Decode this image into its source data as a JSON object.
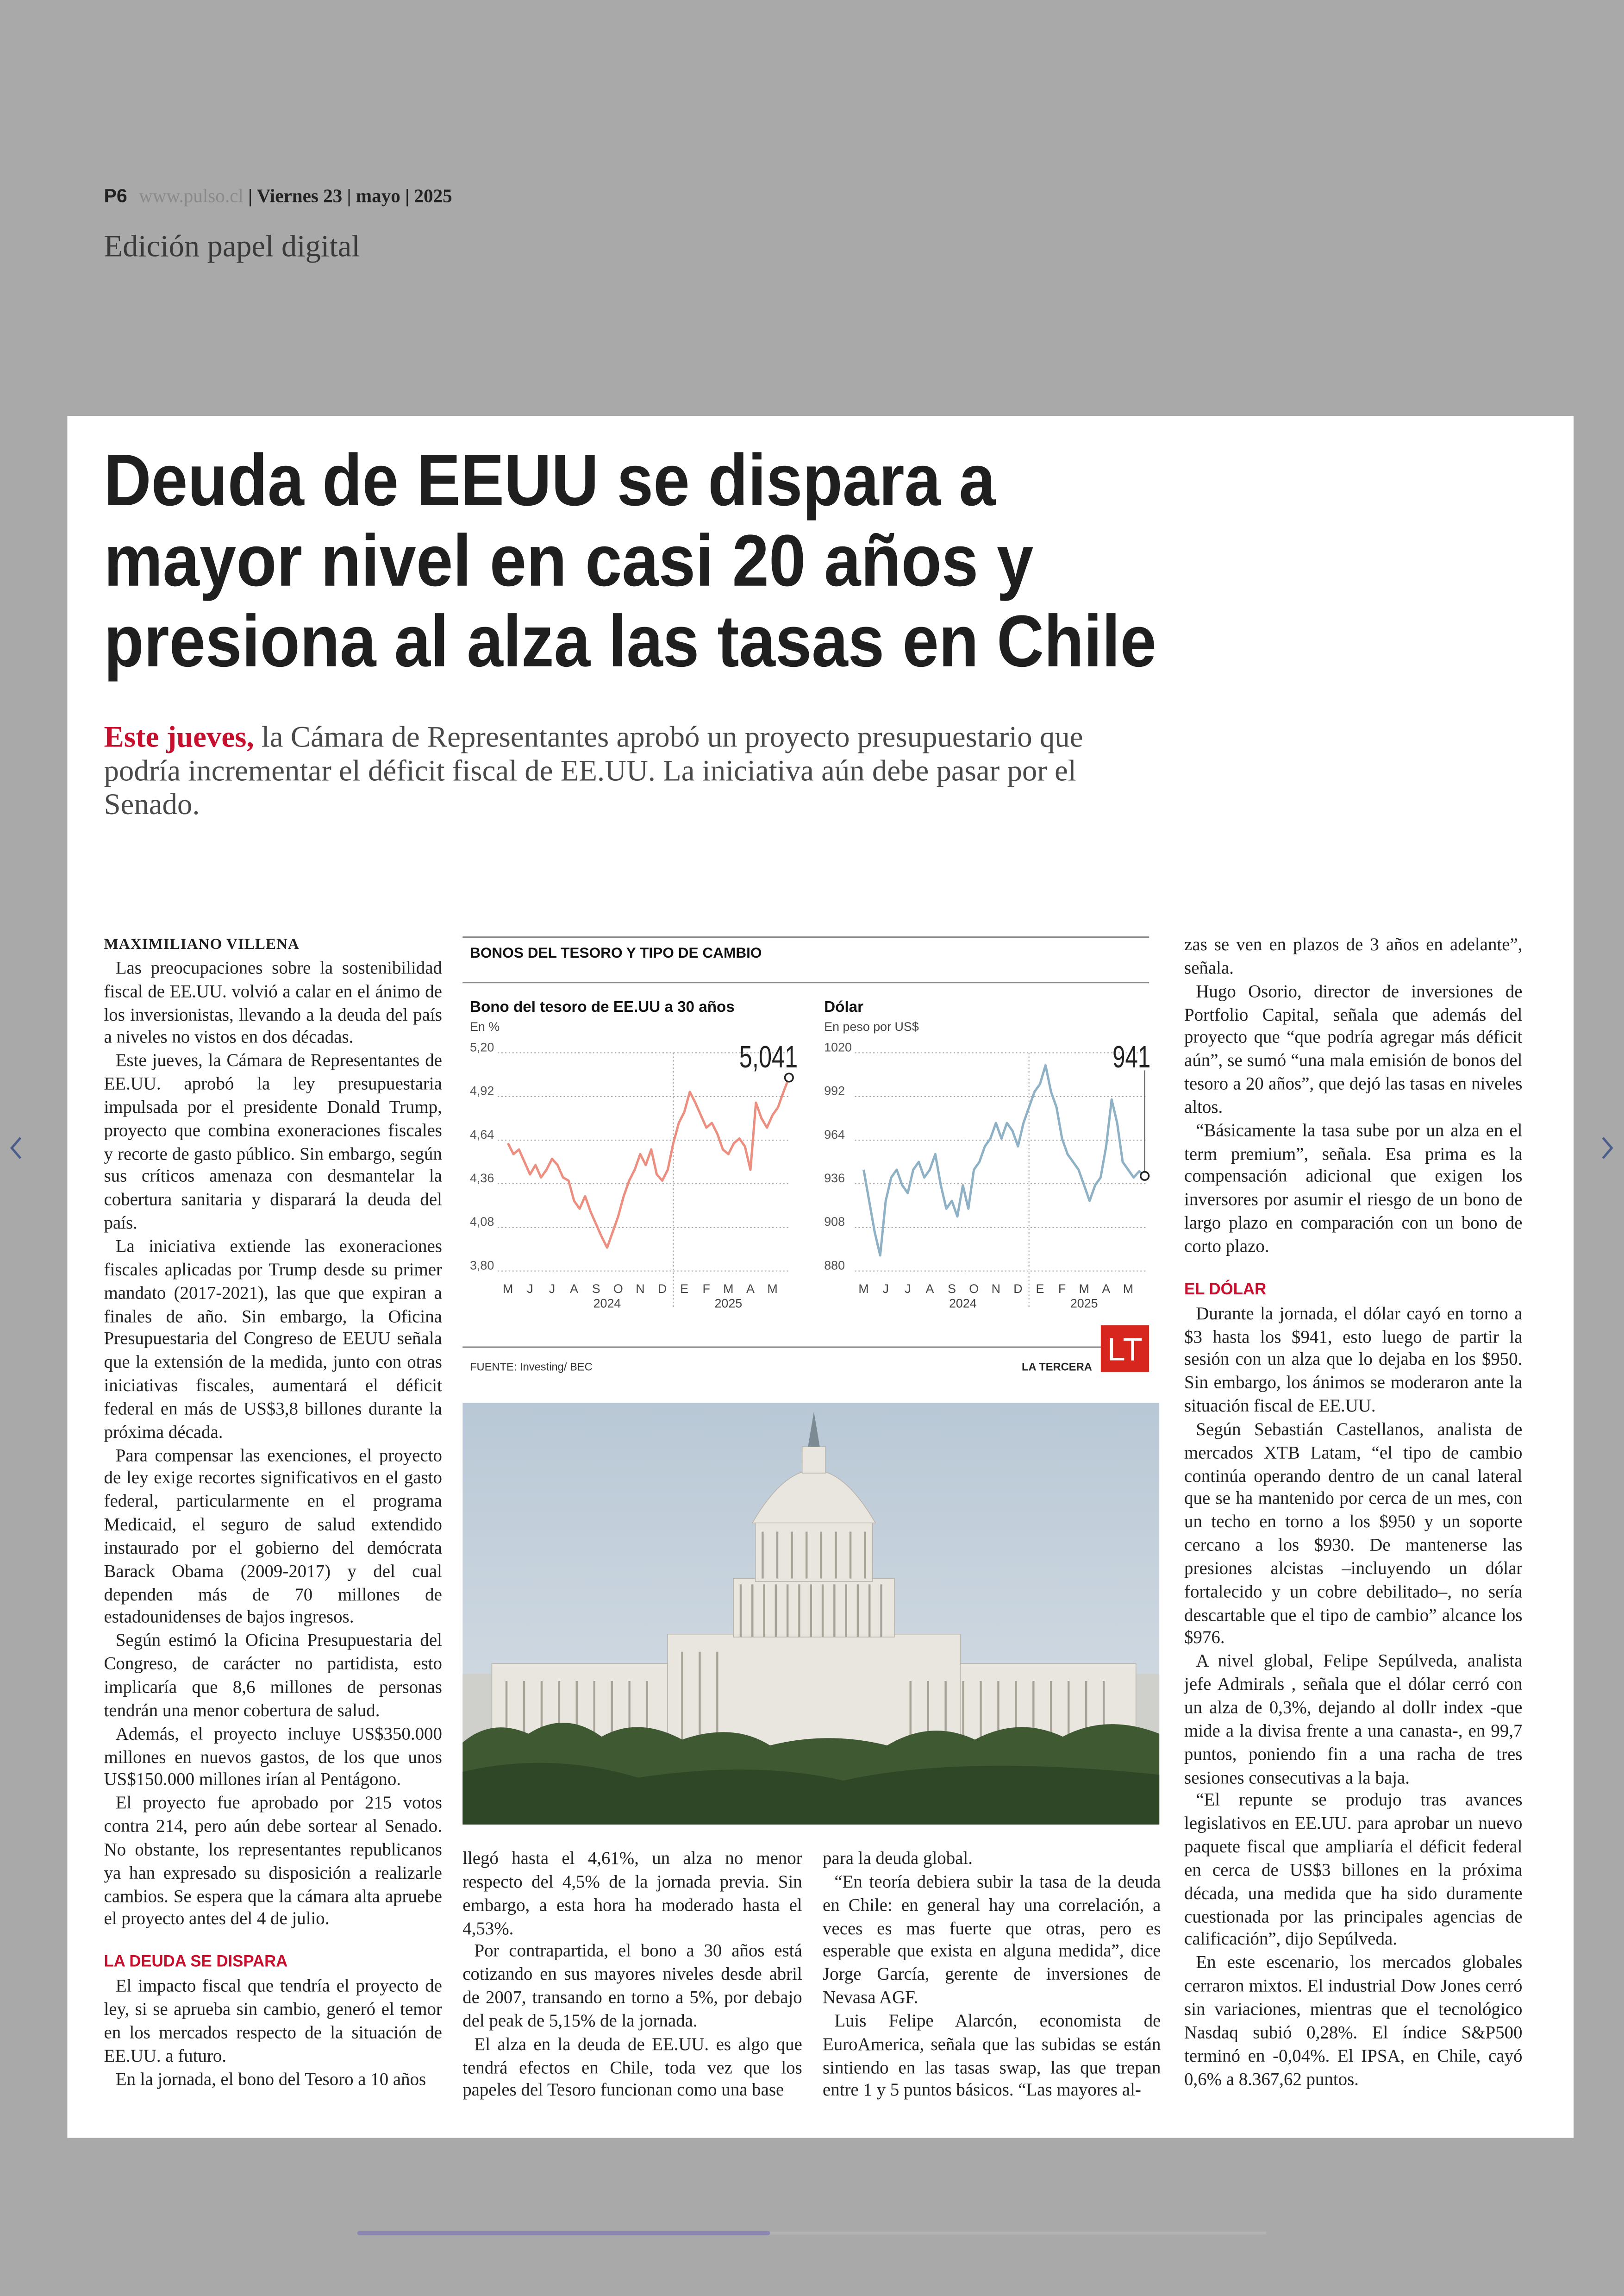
{
  "header": {
    "page": "P6",
    "url": "www.pulso.cl",
    "day": "Viernes 23",
    "month": "mayo",
    "year": "2025",
    "edition": "Edición papel digital"
  },
  "article": {
    "title": [
      "Deuda de EEUU se dispara a",
      "mayor nivel en casi 20 años y",
      "presiona al alza las tasas en Chile"
    ],
    "lead_highlight": "Este jueves,",
    "lead": "la Cámara de Representantes aprobó un proyecto presupuestario que podría incrementar el déficit fiscal de EE.UU. La iniciativa aún debe pasar por el Senado.",
    "columns": [
      {
        "byline": "MAXIMILIANO VILLENA",
        "paragraphs": [
          "Las preocupaciones sobre la sostenibilidad fiscal de EE.UU. volvió a calar en el ánimo de los inversionistas, llevando a la deuda del país a niveles no vistos en dos décadas.",
          "Este jueves, la Cámara de Representantes de EE.UU. aprobó la ley presupuestaria impulsada por el presidente Donald Trump, proyecto que combina exoneraciones fiscales y recorte de gasto público. Sin embargo, según sus críticos amenaza con desmantelar la cobertura sanitaria y disparará la deuda del país.",
          "La iniciativa extiende las exoneraciones fiscales aplicadas por Trump desde su primer mandato (2017-2021), las que que expiran a finales de año. Sin embargo, la Oficina Presupuestaria del Congreso de EEUU señala que la extensión de la medida, junto con otras iniciativas fiscales, aumentará el déficit federal en más de US$3,8 billones durante la próxima década.",
          "Para compensar las exenciones, el proyecto de ley exige recortes significativos en el gasto federal, particularmente en el programa Medicaid, el seguro de salud extendido instaurado por el gobierno del demócrata Barack Obama (2009-2017) y del cual dependen más de 70 millones de estadounidenses de bajos ingresos.",
          "Según estimó la Oficina Presupuestaria del Congreso, de carácter no partidista, esto implicaría que 8,6 millones de personas tendrán una menor cobertura de salud.",
          "Además, el proyecto incluye US$350.000 millones en nuevos gastos, de los que unos US$150.000 millones irían al Pentágono.",
          "El proyecto fue aprobado por 215 votos contra 214, pero aún debe sortear al Senado. No obstante, los representantes republicanos ya han expresado su disposición a realizarle cambios. Se espera que la cámara alta apruebe el proyecto antes del 4 de julio."
        ],
        "subhead": "LA DEUDA SE DISPARA",
        "paragraphs_2": [
          "El impacto fiscal que tendría el proyecto de ley, si se aprueba sin cambio, generó el temor en los mercados respecto de la situación de EE.UU. a futuro.",
          "En la jornada, el bono del Tesoro a 10 años"
        ]
      },
      {
        "paragraphs": [
          "llegó hasta el 4,61%, un alza no menor respecto del 4,5% de la jornada previa. Sin embargo, a esta hora ha moderado hasta el 4,53%.",
          "Por contrapartida, el bono a 30 años está cotizando en sus mayores niveles desde abril de 2007, transando en torno a 5%, por debajo del peak de 5,15% de la jornada.",
          "El alza en la deuda de EE.UU. es algo que tendrá efectos en Chile, toda vez que los papeles del Tesoro funcionan como una base"
        ]
      },
      {
        "paragraphs": [
          "para la deuda global.",
          "“En teoría debiera subir la tasa de la deuda en Chile: en general hay una correlación, a veces es mas fuerte que otras, pero es esperable que exista en alguna medida”, dice Jorge García, gerente de inversiones de Nevasa AGF.",
          "Luis Felipe Alarcón, economista de EuroAmerica, señala que las subidas se están sintiendo en las tasas swap, las que trepan entre 1 y 5 puntos básicos. “Las mayores al-"
        ]
      },
      {
        "paragraphs": [
          "zas se ven en plazos de 3 años en adelante”, señala.",
          "Hugo Osorio, director de inversiones de Portfolio Capital, señala que además del proyecto que “que podría agregar más déficit aún”, se sumó “una mala emisión de bonos del tesoro a 20 años”, que dejó las tasas en niveles altos.",
          "“Básicamente la tasa sube por un alza en el term premium”, señala. Esa prima es la compensación adicional que exigen los inversores por asumir el riesgo de un bono de largo plazo en comparación con un bono de corto plazo."
        ],
        "subhead": "EL DÓLAR",
        "paragraphs_2": [
          "Durante la jornada, el dólar cayó en torno a $3 hasta los $941, esto luego de partir la sesión con un alza que lo dejaba en los $950. Sin embargo, los ánimos se moderaron ante la situación fiscal de EE.UU.",
          "Según Sebastián Castellanos, analista de mercados XTB Latam, “el tipo de cambio continúa operando dentro de un canal lateral que se ha mantenido por cerca de un mes, con un techo en torno a los $950 y un soporte cercano a los $930. De mantenerse las presiones alcistas –incluyendo un dólar fortalecido y un cobre debilitado–, no sería descartable que el tipo de cambio” alcance los $976.",
          "A nivel global, Felipe Sepúlveda, analista jefe Admirals , señala que el dólar cerró con un alza de 0,3%, dejando al dollr index -que mide a la divisa frente a una canasta-, en 99,7 puntos, poniendo fin a una racha de tres sesiones consecutivas a la baja.",
          "“El repunte se produjo tras avances legislativos en EE.UU. para aprobar un nuevo paquete fiscal que ampliaría el déficit federal en cerca de US$3 billones en la próxima década, una medida que ha sido duramente cuestionada por las principales agencias de calificación”, dijo Sepúlveda.",
          "En este escenario, los mercados globales cerraron mixtos. El industrial Dow Jones cerró sin variaciones, mientras que el tecnológico Nasdaq subió 0,28%. El índice S&P500 terminó en -0,04%. El IPSA, en Chile, cayó 0,6% a 8.367,62 puntos."
        ]
      }
    ]
  },
  "graphic": {
    "title": "BONOS DEL TESORO Y TIPO DE CAMBIO",
    "source": "FUENTE: Investing/ BEC",
    "brand": "LA TERCERA",
    "logo": "LT"
  },
  "chart_data": [
    {
      "type": "line",
      "title": "Bono del tesoro de EE.UU a 30 años",
      "subtitle": "En %",
      "color": "#ec8f80",
      "categories": [
        "M",
        null,
        null,
        null,
        "J",
        null,
        null,
        null,
        "J",
        null,
        null,
        null,
        "A",
        null,
        null,
        null,
        "S",
        null,
        null,
        null,
        "O",
        null,
        null,
        null,
        "N",
        null,
        null,
        null,
        "D",
        null,
        null,
        null,
        "E",
        null,
        null,
        null,
        "F",
        null,
        null,
        null,
        "M",
        null,
        null,
        null,
        "A",
        null,
        null,
        null,
        "M",
        null,
        null,
        null
      ],
      "year_labels": [
        "2024",
        "2025"
      ],
      "values": [
        4.62,
        4.55,
        4.58,
        4.5,
        4.42,
        4.48,
        4.4,
        4.45,
        4.52,
        4.48,
        4.4,
        4.38,
        4.25,
        4.2,
        4.28,
        4.18,
        4.1,
        4.02,
        3.95,
        4.05,
        4.15,
        4.28,
        4.38,
        4.45,
        4.55,
        4.48,
        4.58,
        4.42,
        4.38,
        4.45,
        4.62,
        4.75,
        4.82,
        4.95,
        4.88,
        4.8,
        4.72,
        4.75,
        4.68,
        4.58,
        4.55,
        4.62,
        4.65,
        4.6,
        4.45,
        4.88,
        4.78,
        4.72,
        4.8,
        4.85,
        4.95,
        5.041
      ],
      "value_labels": [
        null,
        null,
        null,
        null,
        null,
        null,
        null,
        null,
        null,
        null,
        null,
        null,
        null,
        null,
        null,
        null,
        null,
        null,
        null,
        null,
        null,
        null,
        null,
        null,
        null,
        null,
        null,
        null,
        null,
        null,
        null,
        null,
        null,
        null,
        null,
        null,
        null,
        null,
        null,
        null,
        null,
        null,
        null,
        null,
        null,
        null,
        null,
        null,
        null,
        null,
        null,
        "5,041"
      ],
      "ylim": [
        3.8,
        5.2
      ],
      "yticks": [
        {
          "value": 3.8,
          "label": "3,80"
        },
        {
          "value": 4.08,
          "label": "4,08"
        },
        {
          "value": 4.36,
          "label": "4,36"
        },
        {
          "value": 4.64,
          "label": "4,64"
        },
        {
          "value": 4.92,
          "label": "4,92"
        },
        {
          "value": 5.2,
          "label": "5,20"
        }
      ],
      "grid": true
    },
    {
      "type": "line",
      "title": "Dólar",
      "subtitle": "En peso por US$",
      "color": "#8fb1c6",
      "categories": [
        "M",
        null,
        null,
        null,
        "J",
        null,
        null,
        null,
        "J",
        null,
        null,
        null,
        "A",
        null,
        null,
        null,
        "S",
        null,
        null,
        null,
        "O",
        null,
        null,
        null,
        "N",
        null,
        null,
        null,
        "D",
        null,
        null,
        null,
        "E",
        null,
        null,
        null,
        "F",
        null,
        null,
        null,
        "M",
        null,
        null,
        null,
        "A",
        null,
        null,
        null,
        "M",
        null,
        null,
        null
      ],
      "year_labels": [
        "2024",
        "2025"
      ],
      "values": [
        945,
        925,
        905,
        890,
        925,
        940,
        945,
        935,
        930,
        945,
        950,
        940,
        945,
        955,
        935,
        920,
        925,
        915,
        935,
        920,
        945,
        950,
        960,
        965,
        975,
        965,
        975,
        970,
        960,
        975,
        985,
        995,
        1000,
        1012,
        995,
        985,
        965,
        955,
        950,
        945,
        935,
        925,
        935,
        940,
        960,
        990,
        975,
        950,
        945,
        940,
        944,
        941
      ],
      "ylim": [
        880,
        1020
      ],
      "yticks": [
        880,
        908,
        936,
        964,
        992,
        1020
      ],
      "grid": true
    }
  ]
}
